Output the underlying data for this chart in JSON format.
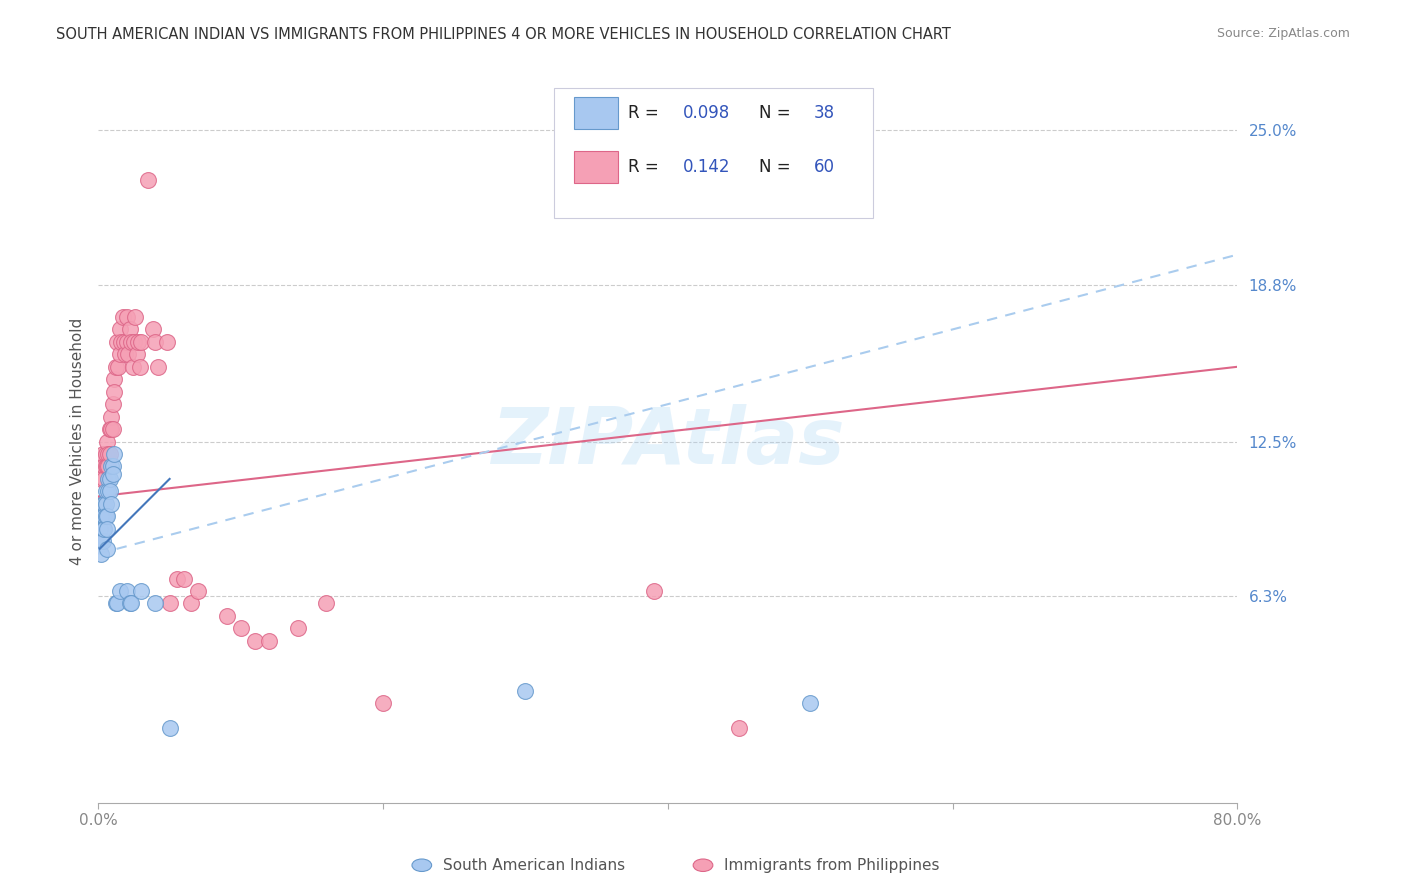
{
  "title": "SOUTH AMERICAN INDIAN VS IMMIGRANTS FROM PHILIPPINES 4 OR MORE VEHICLES IN HOUSEHOLD CORRELATION CHART",
  "source": "Source: ZipAtlas.com",
  "ylabel": "4 or more Vehicles in Household",
  "xlim": [
    0.0,
    0.8
  ],
  "ylim": [
    -0.02,
    0.27
  ],
  "xticks": [
    0.0,
    0.2,
    0.4,
    0.6,
    0.8
  ],
  "xticklabels": [
    "0.0%",
    "",
    "",
    "",
    "80.0%"
  ],
  "ytick_positions": [
    0.063,
    0.125,
    0.188,
    0.25
  ],
  "ytick_labels": [
    "6.3%",
    "12.5%",
    "18.8%",
    "25.0%"
  ],
  "grid_color": "#cccccc",
  "background_color": "#ffffff",
  "watermark": "ZIPAtlas",
  "watermark_color": "#a8d4f5",
  "blue_series": {
    "label": "South American Indians",
    "R": "0.098",
    "N": "38",
    "color": "#a8c8f0",
    "edge_color": "#6699cc",
    "line_color": "#4477bb",
    "line_style": "-",
    "x": [
      0.001,
      0.001,
      0.002,
      0.002,
      0.002,
      0.003,
      0.003,
      0.003,
      0.003,
      0.004,
      0.004,
      0.004,
      0.005,
      0.005,
      0.005,
      0.006,
      0.006,
      0.006,
      0.007,
      0.007,
      0.008,
      0.008,
      0.009,
      0.009,
      0.01,
      0.01,
      0.011,
      0.012,
      0.013,
      0.015,
      0.02,
      0.022,
      0.023,
      0.03,
      0.04,
      0.05,
      0.3,
      0.5
    ],
    "y": [
      0.09,
      0.085,
      0.095,
      0.085,
      0.08,
      0.1,
      0.095,
      0.09,
      0.085,
      0.1,
      0.095,
      0.09,
      0.105,
      0.1,
      0.095,
      0.095,
      0.09,
      0.082,
      0.11,
      0.105,
      0.11,
      0.105,
      0.115,
      0.1,
      0.115,
      0.112,
      0.12,
      0.06,
      0.06,
      0.065,
      0.065,
      0.06,
      0.06,
      0.065,
      0.06,
      0.01,
      0.025,
      0.02
    ],
    "trend_x": [
      0.001,
      0.05
    ],
    "trend_y": [
      0.082,
      0.11
    ]
  },
  "pink_series": {
    "label": "Immigrants from Philippines",
    "R": "0.142",
    "N": "60",
    "color": "#f5a0b5",
    "edge_color": "#dd6688",
    "line_color": "#dd6688",
    "line_style": "-",
    "x": [
      0.001,
      0.002,
      0.003,
      0.003,
      0.004,
      0.004,
      0.005,
      0.005,
      0.006,
      0.006,
      0.007,
      0.007,
      0.008,
      0.008,
      0.009,
      0.009,
      0.01,
      0.01,
      0.011,
      0.011,
      0.012,
      0.013,
      0.014,
      0.015,
      0.015,
      0.016,
      0.017,
      0.018,
      0.019,
      0.02,
      0.02,
      0.021,
      0.022,
      0.023,
      0.024,
      0.025,
      0.026,
      0.027,
      0.028,
      0.029,
      0.03,
      0.035,
      0.038,
      0.04,
      0.042,
      0.048,
      0.05,
      0.055,
      0.06,
      0.065,
      0.07,
      0.09,
      0.1,
      0.11,
      0.12,
      0.14,
      0.16,
      0.2,
      0.39,
      0.45
    ],
    "y": [
      0.1,
      0.11,
      0.12,
      0.1,
      0.115,
      0.11,
      0.12,
      0.115,
      0.125,
      0.115,
      0.12,
      0.115,
      0.13,
      0.12,
      0.135,
      0.13,
      0.14,
      0.13,
      0.15,
      0.145,
      0.155,
      0.165,
      0.155,
      0.17,
      0.16,
      0.165,
      0.175,
      0.165,
      0.16,
      0.175,
      0.165,
      0.16,
      0.17,
      0.165,
      0.155,
      0.165,
      0.175,
      0.16,
      0.165,
      0.155,
      0.165,
      0.23,
      0.17,
      0.165,
      0.155,
      0.165,
      0.06,
      0.07,
      0.07,
      0.06,
      0.065,
      0.055,
      0.05,
      0.045,
      0.045,
      0.05,
      0.06,
      0.02,
      0.065,
      0.01
    ],
    "trend_x": [
      0.0,
      0.8
    ],
    "trend_y": [
      0.103,
      0.155
    ]
  },
  "legend_entries": [
    {
      "label_r": "R = ",
      "r_val": "0.098",
      "label_n": "  N = ",
      "n_val": "38",
      "color": "#a8c8f0",
      "edge_color": "#6699cc"
    },
    {
      "label_r": "R = ",
      "r_val": "0.142",
      "label_n": "  N = ",
      "n_val": "60",
      "color": "#f5a0b5",
      "edge_color": "#dd6688"
    }
  ]
}
